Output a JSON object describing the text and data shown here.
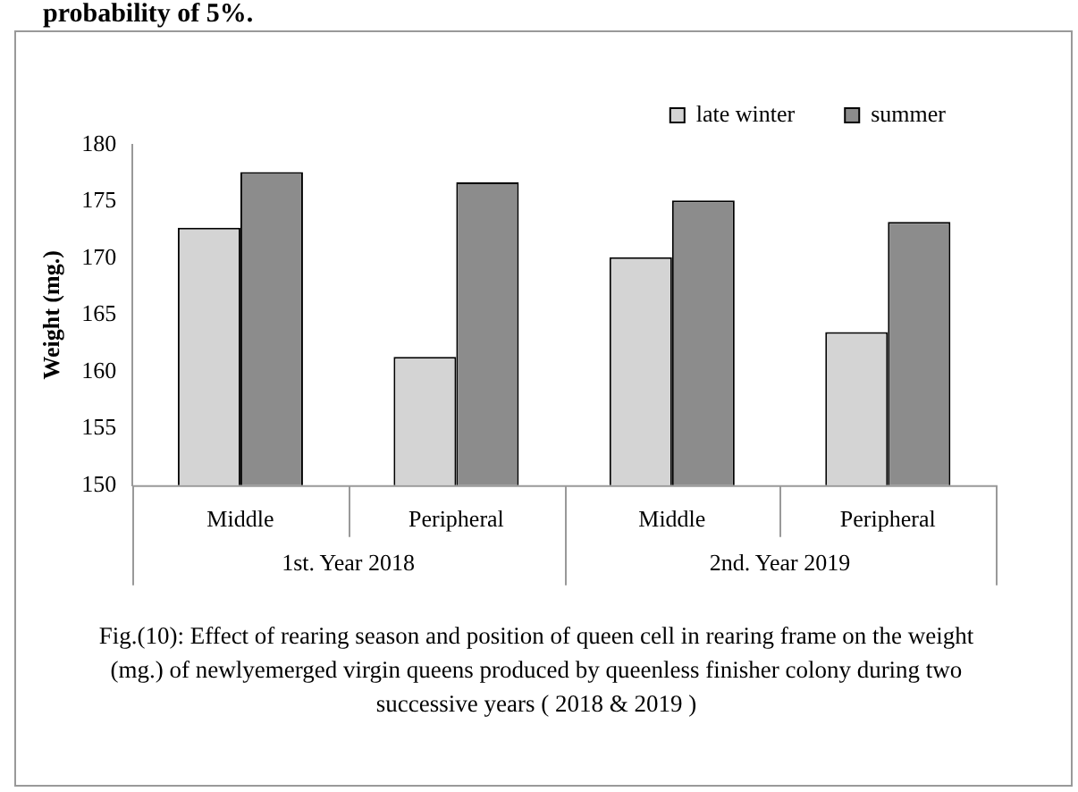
{
  "chart_data": {
    "type": "bar",
    "ylabel": "Weight (mg.)",
    "categories": [
      "Middle",
      "Peripheral",
      "Middle",
      "Peripheral"
    ],
    "series": [
      {
        "name": "late winter",
        "color": "#d4d4d4",
        "values": [
          172.7,
          161.3,
          170.1,
          163.5
        ]
      },
      {
        "name": "summer",
        "color": "#8c8c8c",
        "values": [
          177.6,
          176.7,
          175.1,
          173.2
        ]
      }
    ],
    "ylim": [
      150,
      180
    ],
    "yticks": [
      150,
      155,
      160,
      165,
      170,
      175,
      180
    ],
    "grid": false,
    "legend": "top right",
    "annotations": [
      "1st. Year 2018",
      "2nd. Year 2019",
      "Fig.(10): Effect of rearing season and position of queen cell in rearing frame on the weight (mg.) of newlyemerged virgin queens produced by queenless finisher colony during two successive years ( 2018 & 2019 )",
      "probability of 5%."
    ]
  }
}
